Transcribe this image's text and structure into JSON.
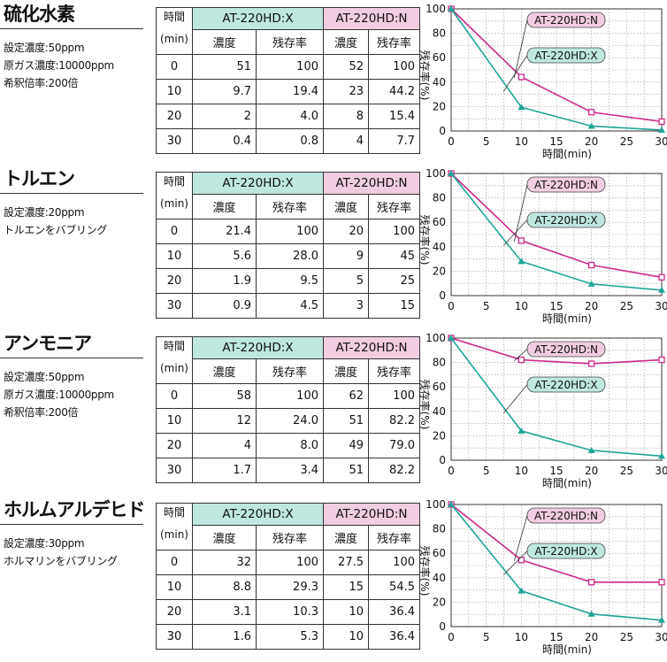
{
  "headers": {
    "time": [
      "時間",
      "(min)"
    ],
    "model_x": "AT-220HD:X",
    "model_n": "AT-220HD:N",
    "conc": "濃度",
    "residual": "残存率"
  },
  "colors": {
    "x_series": "#1fa597",
    "n_series": "#cc2a8a",
    "x_header": "#bfe6df",
    "n_header": "#f0cde0"
  },
  "sections": [
    {
      "name": "硫化水素",
      "conditions": [
        "設定濃度:50ppm",
        "原ガス濃度:10000ppm",
        "希釈倍率:200倍"
      ],
      "rows": [
        {
          "time": "0",
          "x_conc": "51",
          "x_res": "100",
          "n_conc": "52",
          "n_res": "100"
        },
        {
          "time": "10",
          "x_conc": "9.7",
          "x_res": "19.4",
          "n_conc": "23",
          "n_res": "44.2"
        },
        {
          "time": "20",
          "x_conc": "2",
          "x_res": "4.0",
          "n_conc": "8",
          "n_res": "15.4"
        },
        {
          "time": "30",
          "x_conc": "0.4",
          "x_res": "0.8",
          "n_conc": "4",
          "n_res": "7.7"
        }
      ]
    },
    {
      "name": "トルエン",
      "conditions": [
        "設定濃度:20ppm",
        "トルエンをバブリング"
      ],
      "rows": [
        {
          "time": "0",
          "x_conc": "21.4",
          "x_res": "100",
          "n_conc": "20",
          "n_res": "100"
        },
        {
          "time": "10",
          "x_conc": "5.6",
          "x_res": "28.0",
          "n_conc": "9",
          "n_res": "45"
        },
        {
          "time": "20",
          "x_conc": "1.9",
          "x_res": "9.5",
          "n_conc": "5",
          "n_res": "25"
        },
        {
          "time": "30",
          "x_conc": "0.9",
          "x_res": "4.5",
          "n_conc": "3",
          "n_res": "15"
        }
      ]
    },
    {
      "name": "アンモニア",
      "conditions": [
        "設定濃度:50ppm",
        "原ガス濃度:10000ppm",
        "希釈倍率:200倍"
      ],
      "rows": [
        {
          "time": "0",
          "x_conc": "58",
          "x_res": "100",
          "n_conc": "62",
          "n_res": "100"
        },
        {
          "time": "10",
          "x_conc": "12",
          "x_res": "24.0",
          "n_conc": "51",
          "n_res": "82.2"
        },
        {
          "time": "20",
          "x_conc": "4",
          "x_res": "8.0",
          "n_conc": "49",
          "n_res": "79.0"
        },
        {
          "time": "30",
          "x_conc": "1.7",
          "x_res": "3.4",
          "n_conc": "51",
          "n_res": "82.2"
        }
      ]
    },
    {
      "name": "ホルムアルデヒド",
      "conditions": [
        "設定濃度:30ppm",
        "ホルマリンをバブリング"
      ],
      "rows": [
        {
          "time": "0",
          "x_conc": "32",
          "x_res": "100",
          "n_conc": "27.5",
          "n_res": "100"
        },
        {
          "time": "10",
          "x_conc": "8.8",
          "x_res": "29.3",
          "n_conc": "15",
          "n_res": "54.5"
        },
        {
          "time": "20",
          "x_conc": "3.1",
          "x_res": "10.3",
          "n_conc": "10",
          "n_res": "36.4"
        },
        {
          "time": "30",
          "x_conc": "1.6",
          "x_res": "5.3",
          "n_conc": "10",
          "n_res": "36.4"
        }
      ]
    }
  ],
  "chart_data": [
    {
      "type": "line",
      "xlabel": "時間(min)",
      "ylabel": "残存率(%)",
      "xlim": [
        0,
        30
      ],
      "ylim": [
        0,
        100
      ],
      "xticks": [
        0,
        5,
        10,
        15,
        20,
        25,
        30
      ],
      "yticks": [
        0,
        20,
        40,
        60,
        80,
        100
      ],
      "grid": true,
      "x": [
        0,
        10,
        20,
        30
      ],
      "series": [
        {
          "name": "AT-220HD:N",
          "values": [
            100,
            44.2,
            15.4,
            7.7
          ],
          "marker": "square"
        },
        {
          "name": "AT-220HD:X",
          "values": [
            100,
            19.4,
            4.0,
            0.8
          ],
          "marker": "triangle"
        }
      ]
    },
    {
      "type": "line",
      "xlabel": "時間(min)",
      "ylabel": "残存率(%)",
      "xlim": [
        0,
        30
      ],
      "ylim": [
        0,
        100
      ],
      "xticks": [
        0,
        5,
        10,
        15,
        20,
        25,
        30
      ],
      "yticks": [
        0,
        20,
        40,
        60,
        80,
        100
      ],
      "grid": true,
      "x": [
        0,
        10,
        20,
        30
      ],
      "series": [
        {
          "name": "AT-220HD:N",
          "values": [
            100,
            45,
            25,
            15
          ],
          "marker": "square"
        },
        {
          "name": "AT-220HD:X",
          "values": [
            100,
            28.0,
            9.5,
            4.5
          ],
          "marker": "triangle"
        }
      ]
    },
    {
      "type": "line",
      "xlabel": "時間(min)",
      "ylabel": "残存率(%)",
      "xlim": [
        0,
        30
      ],
      "ylim": [
        0,
        100
      ],
      "xticks": [
        0,
        5,
        10,
        15,
        20,
        25,
        30
      ],
      "yticks": [
        0,
        20,
        40,
        60,
        80,
        100
      ],
      "grid": true,
      "x": [
        0,
        10,
        20,
        30
      ],
      "series": [
        {
          "name": "AT-220HD:N",
          "values": [
            100,
            82.2,
            79.0,
            82.2
          ],
          "marker": "square"
        },
        {
          "name": "AT-220HD:X",
          "values": [
            100,
            24.0,
            8.0,
            3.4
          ],
          "marker": "triangle"
        }
      ]
    },
    {
      "type": "line",
      "xlabel": "時間(min)",
      "ylabel": "残存率(%)",
      "xlim": [
        0,
        30
      ],
      "ylim": [
        0,
        100
      ],
      "xticks": [
        0,
        5,
        10,
        15,
        20,
        25,
        30
      ],
      "yticks": [
        0,
        20,
        40,
        60,
        80,
        100
      ],
      "grid": true,
      "x": [
        0,
        10,
        20,
        30
      ],
      "series": [
        {
          "name": "AT-220HD:N",
          "values": [
            100,
            54.5,
            36.4,
            36.4
          ],
          "marker": "square"
        },
        {
          "name": "AT-220HD:X",
          "values": [
            100,
            29.3,
            10.3,
            5.3
          ],
          "marker": "triangle"
        }
      ]
    }
  ]
}
